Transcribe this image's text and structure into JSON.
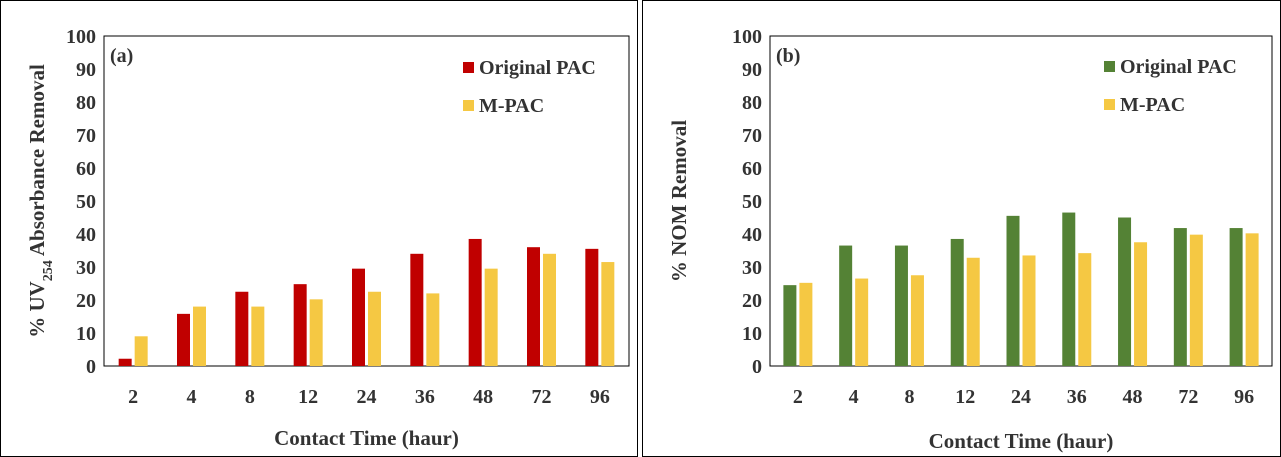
{
  "chart_data": [
    {
      "type": "bar",
      "panel_label": "(a)",
      "categories": [
        "2",
        "4",
        "8",
        "12",
        "24",
        "36",
        "48",
        "72",
        "96"
      ],
      "series": [
        {
          "name": "Original PAC",
          "color": "#c00000",
          "values": [
            2.2,
            15.8,
            22.5,
            24.8,
            29.5,
            34.0,
            38.5,
            36.0,
            35.5
          ]
        },
        {
          "name": "M-PAC",
          "color": "#f5c843",
          "values": [
            9.0,
            18.0,
            18.0,
            20.2,
            22.5,
            22.0,
            29.5,
            34.0,
            31.5
          ]
        }
      ],
      "ylabel_prefix": "% UV",
      "ylabel_sub": "254",
      "ylabel_suffix": " Absorbance Removal",
      "xlabel": "Contact Time (haur)",
      "ylim": [
        0,
        100
      ],
      "yticks": [
        "0",
        "10",
        "20",
        "30",
        "40",
        "50",
        "60",
        "70",
        "80",
        "90",
        "100"
      ],
      "grid": false,
      "legend_position": "top-right"
    },
    {
      "type": "bar",
      "panel_label": "(b)",
      "categories": [
        "2",
        "4",
        "8",
        "12",
        "24",
        "36",
        "48",
        "72",
        "96"
      ],
      "series": [
        {
          "name": "Original PAC",
          "color": "#548235",
          "values": [
            24.5,
            36.5,
            36.5,
            38.5,
            45.5,
            46.5,
            45.0,
            41.8,
            41.8
          ]
        },
        {
          "name": "M-PAC",
          "color": "#f5c843",
          "values": [
            25.2,
            26.5,
            27.5,
            32.8,
            33.5,
            34.2,
            37.5,
            39.8,
            40.2
          ]
        }
      ],
      "ylabel": "% NOM Removal",
      "xlabel": "Contact Time (haur)",
      "ylim": [
        0,
        100
      ],
      "yticks": [
        "0",
        "10",
        "20",
        "30",
        "40",
        "50",
        "60",
        "70",
        "80",
        "90",
        "100"
      ],
      "grid": false,
      "legend_position": "top-right"
    }
  ]
}
